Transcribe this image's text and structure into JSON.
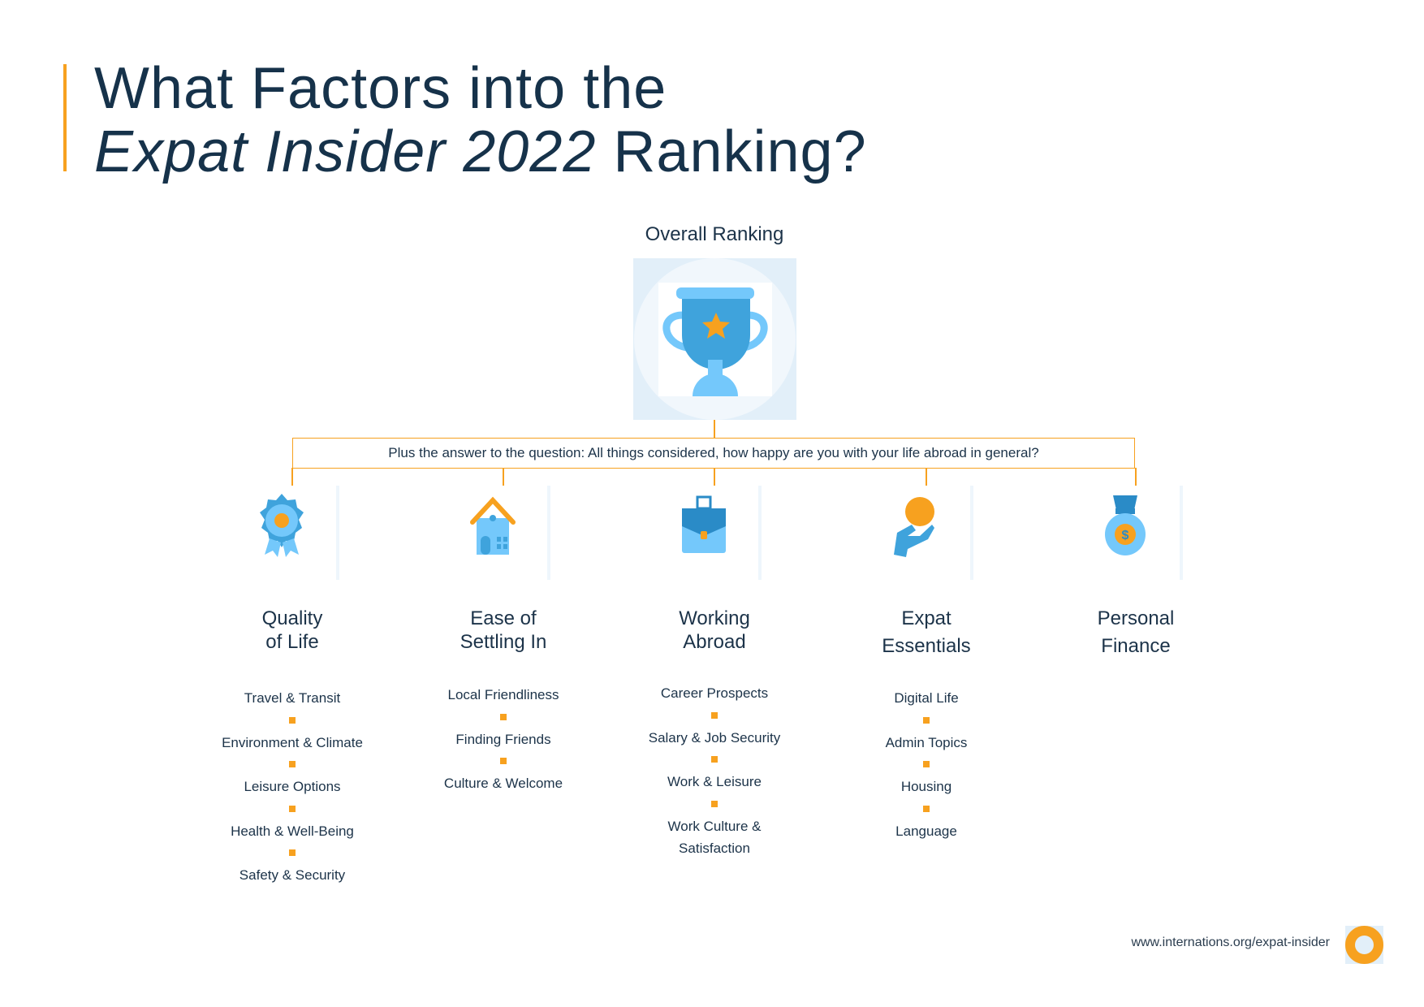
{
  "title": {
    "line1": "What Factors into the",
    "line2_italic": "Expat Insider 2022",
    "line2_rest": " Ranking?"
  },
  "overall": {
    "label": "Overall Ranking",
    "icon": "trophy-icon"
  },
  "question": "Plus the answer to the question: All things considered, how happy are you with your life abroad in general?",
  "colors": {
    "accent": "#f7a11f",
    "text": "#16324a",
    "blue": "#3fa3dc",
    "light_blue": "#74c8fb"
  },
  "categories": [
    {
      "title1": "Quality",
      "title2": "of Life",
      "icon": "award-rosette-icon",
      "items": [
        "Travel & Transit",
        "Environment & Climate",
        "Leisure Options",
        "Health & Well-Being",
        "Safety & Security"
      ]
    },
    {
      "title1": "Ease of",
      "title2": "Settling In",
      "icon": "house-icon",
      "items": [
        "Local Friendliness",
        "Finding Friends",
        "Culture & Welcome"
      ]
    },
    {
      "title1": "Working",
      "title2": "Abroad",
      "icon": "briefcase-icon",
      "items": [
        "Career Prospects",
        "Salary & Job Security",
        "Work & Leisure",
        "Work Culture & Satisfaction"
      ]
    },
    {
      "title1": "Expat",
      "title2": "Essentials",
      "icon": "hand-coin-icon",
      "items": [
        "Digital Life",
        "Admin Topics",
        "Housing",
        "Language"
      ]
    },
    {
      "title1": "Personal",
      "title2": "Finance",
      "icon": "money-bag-icon",
      "items": []
    }
  ],
  "footer": {
    "url": "www.internations.org/expat-insider"
  }
}
